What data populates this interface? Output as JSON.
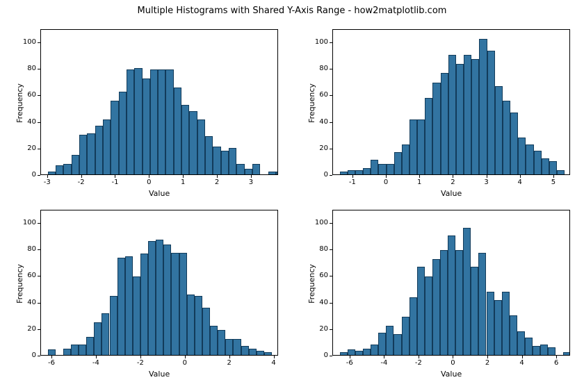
{
  "suptitle": "Multiple Histograms with Shared Y-Axis Range - how2matplotlib.com",
  "title_fontsize": 13,
  "label_fontsize": 11,
  "tick_fontsize": 10,
  "background_color": "#ffffff",
  "axis_color": "#000000",
  "bar_fill": "#3274a1",
  "bar_edge": "#123b5a",
  "bar_edge_width": 0.6,
  "ylim": [
    0,
    110
  ],
  "ytick_step": 20,
  "ylabel": "Frequency",
  "xlabel": "Value",
  "panels": [
    {
      "type": "histogram",
      "xlim": [
        -3.2,
        3.8
      ],
      "xtick_step": 1,
      "bin_width": 0.233,
      "bin_start": -3.0,
      "counts": [
        2,
        7,
        8,
        15,
        30,
        31,
        37,
        42,
        56,
        63,
        80,
        81,
        73,
        80,
        80,
        80,
        66,
        53,
        48,
        42,
        29,
        21,
        18,
        20,
        8,
        4,
        8,
        0,
        2,
        2
      ]
    },
    {
      "type": "histogram",
      "xlim": [
        -1.6,
        5.5
      ],
      "xtick_step": 1,
      "bin_width": 0.233,
      "bin_start": -1.4,
      "counts": [
        2,
        3,
        3,
        5,
        11,
        8,
        8,
        17,
        23,
        42,
        42,
        58,
        70,
        77,
        91,
        84,
        91,
        88,
        103,
        94,
        67,
        56,
        47,
        28,
        23,
        18,
        12,
        10,
        3,
        0,
        3
      ]
    },
    {
      "type": "histogram",
      "xlim": [
        -6.5,
        4.2
      ],
      "xtick_step": 2,
      "bin_width": 0.35,
      "bin_start": -6.2,
      "counts": [
        4,
        0,
        5,
        8,
        8,
        14,
        25,
        32,
        45,
        74,
        75,
        60,
        77,
        87,
        88,
        84,
        78,
        78,
        46,
        45,
        36,
        22,
        19,
        12,
        12,
        7,
        5,
        3,
        2
      ]
    },
    {
      "type": "histogram",
      "xlim": [
        -7.0,
        6.8
      ],
      "xtick_step": 2,
      "bin_width": 0.45,
      "bin_start": -6.6,
      "counts": [
        2,
        4,
        3,
        5,
        8,
        17,
        22,
        16,
        29,
        44,
        67,
        60,
        73,
        80,
        91,
        80,
        97,
        67,
        78,
        48,
        42,
        48,
        30,
        18,
        13,
        7,
        8,
        6,
        0,
        2
      ]
    }
  ]
}
